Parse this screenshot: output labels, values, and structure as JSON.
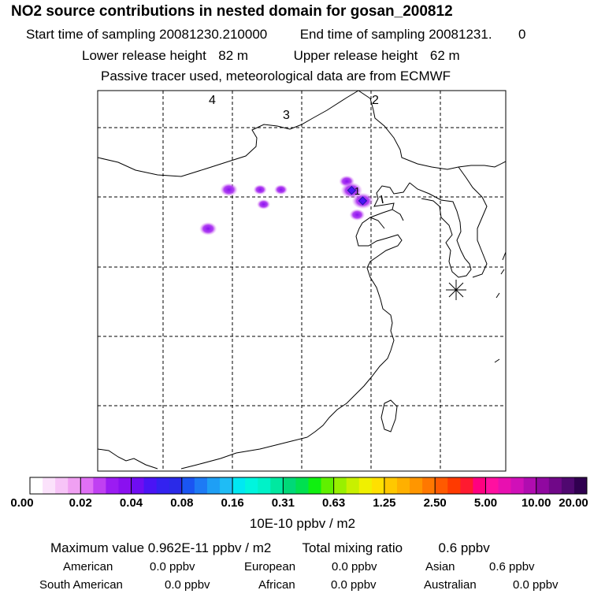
{
  "header": {
    "title": "NO2 source contributions in nested domain for gosan_200812",
    "start_label": "Start time of sampling",
    "start_value": "20081230.210000",
    "end_label": "End time of sampling",
    "end_value": "20081231.",
    "end_value2": "0",
    "lower_label": "Lower release height",
    "lower_value": "82 m",
    "upper_label": "Upper release height",
    "upper_value": "62 m",
    "note": "Passive tracer used, meteorological data are from ECMWF"
  },
  "chart_data": {
    "type": "heatmap",
    "map_labels": [
      "4",
      "3",
      "2",
      "1"
    ],
    "receptor_marker": "Gosan station (asterisk)",
    "plumes": [
      {
        "lon": 99.5,
        "lat": 41.1,
        "value": 0.04
      },
      {
        "lon": 104.0,
        "lat": 41.1,
        "value": 0.02
      },
      {
        "lon": 107.0,
        "lat": 41.1,
        "value": 0.02
      },
      {
        "lon": 116.5,
        "lat": 42.3,
        "value": 0.03
      },
      {
        "lon": 117.2,
        "lat": 41.0,
        "value": 0.06
      },
      {
        "lon": 118.8,
        "lat": 39.5,
        "value": 0.06
      },
      {
        "lon": 118.0,
        "lat": 37.5,
        "value": 0.03
      },
      {
        "lon": 104.5,
        "lat": 39.0,
        "value": 0.02
      },
      {
        "lon": 96.5,
        "lat": 35.5,
        "value": 0.04
      }
    ],
    "colorbar": {
      "tick_labels": [
        "0.00",
        "0.02",
        "0.04",
        "0.08",
        "0.16",
        "0.31",
        "0.63",
        "1.25",
        "2.50",
        "5.00",
        "10.00",
        "20.00"
      ],
      "unit": "10E-10 ppbv / m2",
      "colors": [
        "#ffffff",
        "#fbe2fb",
        "#f7c4f7",
        "#f0a0f2",
        "#e070f5",
        "#c040f2",
        "#9b1cf2",
        "#8a10f0",
        "#6f0df2",
        "#4a14f5",
        "#3322f0",
        "#2a2ae8",
        "#1a55f2",
        "#1d7af5",
        "#1e9ff5",
        "#1fbcf5",
        "#00e8f2",
        "#00f5de",
        "#00f2c8",
        "#00e8a0",
        "#00d878",
        "#00e050",
        "#10f010",
        "#60f000",
        "#98f000",
        "#c8f000",
        "#f0f000",
        "#ffe000",
        "#ffc800",
        "#ffb000",
        "#ff9600",
        "#ff7800",
        "#ff5a00",
        "#ff3a00",
        "#ff1a30",
        "#ff0080",
        "#ff10a0",
        "#e810b0",
        "#d010b8",
        "#b00cb0",
        "#9008a0",
        "#700888",
        "#500870",
        "#300050"
      ]
    }
  },
  "stats": {
    "max_label": "Maximum value",
    "max_value": "0.962E-11 ppbv / m2",
    "total_label": "Total mixing ratio",
    "total_value": "0.6 ppbv",
    "regions": [
      {
        "name": "American",
        "value": "0.0 ppbv"
      },
      {
        "name": "European",
        "value": "0.0 ppbv"
      },
      {
        "name": "Asian",
        "value": "0.6 ppbv"
      },
      {
        "name": "South American",
        "value": "0.0 ppbv"
      },
      {
        "name": "African",
        "value": "0.0 ppbv"
      },
      {
        "name": "Australian",
        "value": "0.0 ppbv"
      }
    ]
  }
}
